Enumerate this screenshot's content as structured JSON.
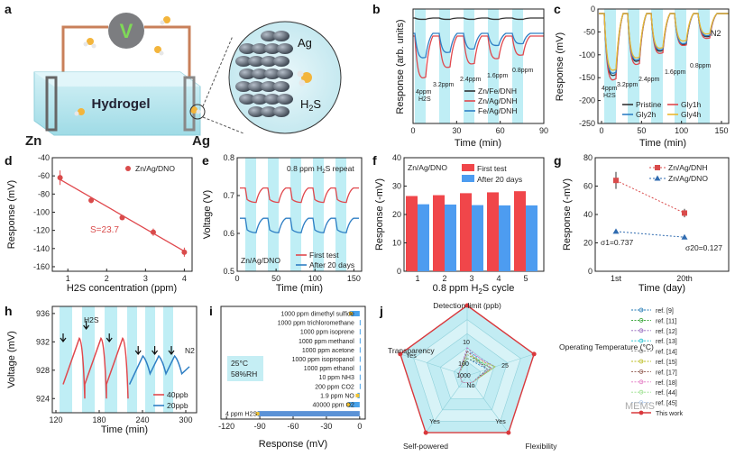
{
  "chart_data": [
    {
      "panel": "a",
      "type": "schematic",
      "labels": {
        "electrode_left": "Zn",
        "electrode_right": "Ag",
        "gel": "Hydrogel",
        "meter": "V",
        "zoom_metal": "Ag",
        "gas": "H2S"
      }
    },
    {
      "panel": "b",
      "type": "line",
      "xlabel": "Time (min)",
      "ylabel": "Response (arb. units)",
      "xlim": [
        0,
        90
      ],
      "xticks": [
        0,
        30,
        60,
        90
      ],
      "legend": [
        "Zn/Fe/DNH",
        "Zn/Ag/DNH",
        "Fe/Ag/DNH"
      ],
      "annotations": [
        "4ppm",
        "H2S",
        "3.2ppm",
        "2.4ppm",
        "1.6ppm",
        "0.8ppm"
      ]
    },
    {
      "panel": "c",
      "type": "line",
      "xlabel": "Time (min)",
      "ylabel": "Response (mV)",
      "xlim": [
        0,
        150
      ],
      "xticks": [
        0,
        50,
        100,
        150
      ],
      "ylim": [
        -250,
        0
      ],
      "yticks": [
        0,
        -50,
        -100,
        -150,
        -200,
        -250
      ],
      "legend": [
        "Pristine",
        "Gly1h",
        "Gly2h",
        "Gly4h"
      ],
      "annotations": [
        "N2",
        "4ppm",
        "H2S",
        "3.2ppm",
        "2.4ppm",
        "1.6ppm",
        "0.8ppm"
      ]
    },
    {
      "panel": "d",
      "type": "scatter",
      "xlabel": "H2S concentration (ppm)",
      "ylabel": "Response (mV)",
      "xlim": [
        0.6,
        4.2
      ],
      "xticks": [
        1,
        2,
        3,
        4
      ],
      "ylim": [
        -165,
        -40
      ],
      "yticks": [
        -40,
        -60,
        -80,
        -100,
        -120,
        -140,
        -160
      ],
      "legend": [
        "Zn/Ag/DNO"
      ],
      "fit_label": "S=23.7",
      "x": [
        0.8,
        1.6,
        2.4,
        3.2,
        4.0
      ],
      "y": [
        -62,
        -87,
        -106,
        -122,
        -144
      ],
      "err": [
        8,
        3,
        2,
        4,
        5
      ]
    },
    {
      "panel": "e",
      "type": "line",
      "title": "0.8 ppm H2S repeat",
      "xlabel": "Time (min)",
      "ylabel": "Voltage (V)",
      "xlim": [
        0,
        160
      ],
      "xticks": [
        0,
        50,
        100,
        150
      ],
      "ylim": [
        0.5,
        0.8
      ],
      "yticks": [
        0.5,
        0.6,
        0.7,
        0.8
      ],
      "legend": [
        "First test",
        "After 20 days"
      ],
      "sample": "Zn/Ag/DNO"
    },
    {
      "panel": "f",
      "type": "bar",
      "xlabel": "0.8 ppm H2S cycle",
      "ylabel": "Response (-mV)",
      "categories": [
        "1",
        "2",
        "3",
        "4",
        "5"
      ],
      "ylim": [
        0,
        40
      ],
      "yticks": [
        0,
        10,
        20,
        30,
        40
      ],
      "sample": "Zn/Ag/DNO",
      "series": [
        {
          "name": "First test",
          "values": [
            26.5,
            26.8,
            27.5,
            27.8,
            28.2
          ]
        },
        {
          "name": "After 20 days",
          "values": [
            23.6,
            23.5,
            23.3,
            23.2,
            23.2
          ]
        }
      ]
    },
    {
      "panel": "g",
      "type": "scatter",
      "xlabel": "Time (day)",
      "ylabel": "Response (-mV)",
      "categories": [
        "1st",
        "20th"
      ],
      "ylim": [
        0,
        80
      ],
      "yticks": [
        0,
        20,
        40,
        60,
        80
      ],
      "annotations": [
        "σ1=0.737",
        "σ20=0.127"
      ],
      "series": [
        {
          "name": "Zn/Ag/DNH",
          "values": [
            64,
            41
          ],
          "err": [
            6,
            3
          ]
        },
        {
          "name": "Zn/Ag/DNO",
          "values": [
            28,
            24
          ],
          "err": [
            0.5,
            0.5
          ]
        }
      ]
    },
    {
      "panel": "h",
      "type": "line",
      "xlabel": "Time (min)",
      "ylabel": "Voltage (mV)",
      "xlim": [
        115,
        315
      ],
      "xticks": [
        120,
        180,
        240,
        300
      ],
      "ylim": [
        922,
        937
      ],
      "yticks": [
        924,
        928,
        932,
        936
      ],
      "legend": [
        "40ppb",
        "20ppb"
      ],
      "annotations": [
        "H2S",
        "N2"
      ]
    },
    {
      "panel": "i",
      "type": "bar",
      "orientation": "horizontal",
      "xlabel": "Response (mV)",
      "xlim": [
        -125,
        5
      ],
      "xticks": [
        -120,
        -90,
        -60,
        -30,
        0
      ],
      "condition": [
        "25°C",
        "58%RH"
      ],
      "categories": [
        "1000 ppm dimethyl sulfide",
        "1000 ppm trichloromethane",
        "1000 ppm isoprene",
        "1000 ppm methanol",
        "1000 ppm acetone",
        "1000 ppm isopropanol",
        "1000 ppm ethanol",
        "10 ppm NH3",
        "200 ppm CO2",
        "1.9 ppm NO",
        "40000 ppm O2",
        "4 ppm H2S"
      ],
      "values": [
        -8,
        0,
        0,
        0,
        0,
        0,
        0,
        0,
        0,
        -2,
        -10,
        -92
      ]
    },
    {
      "panel": "j",
      "type": "radar",
      "axes": [
        "Detection limit (ppb)",
        "Operating Temperature (°C)",
        "Flexibility",
        "Self-powered",
        "Transparency"
      ],
      "ticks": [
        "10",
        "100",
        "1000",
        "25",
        "No",
        "Yes"
      ],
      "legend": [
        "ref. [9]",
        "ref. [11]",
        "ref. [12]",
        "ref. [13]",
        "ref. [14]",
        "ref. [15]",
        "ref. [17]",
        "ref. [18]",
        "ref. [44]",
        "ref. [45]",
        "This work"
      ],
      "watermark": "MEMS"
    }
  ]
}
